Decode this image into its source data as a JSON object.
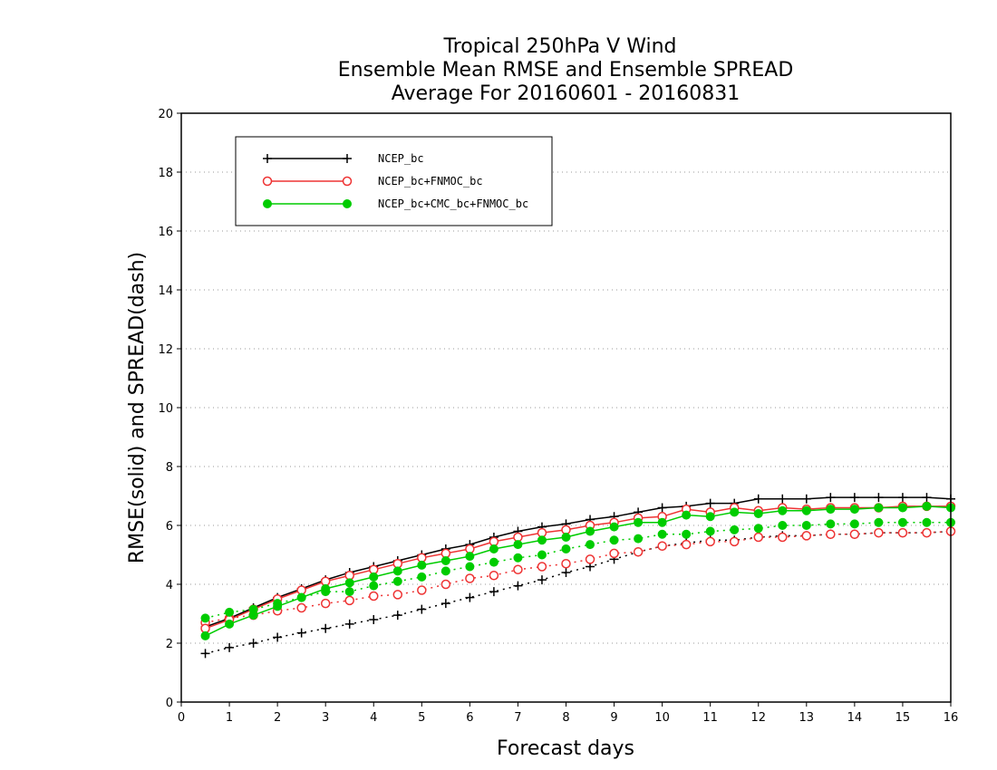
{
  "chart_data": {
    "type": "line",
    "title_lines": [
      "Tropical 250hPa V Wind",
      "Ensemble Mean RMSE and Ensemble SPREAD",
      "Average For 20160601 - 20160831"
    ],
    "xlabel": "Forecast days",
    "ylabel": "RMSE(solid) and SPREAD(dash)",
    "xlim": [
      0,
      16
    ],
    "ylim": [
      0,
      20
    ],
    "x_ticks": [
      "0",
      "1",
      "2",
      "3",
      "4",
      "5",
      "6",
      "7",
      "8",
      "9",
      "10",
      "11",
      "12",
      "13",
      "14",
      "15",
      "16"
    ],
    "y_ticks": [
      "0",
      "2",
      "4",
      "6",
      "8",
      "10",
      "12",
      "14",
      "16",
      "18",
      "20"
    ],
    "grid": "horizontal-dotted",
    "legend_position": "top-left",
    "x": [
      0.5,
      1,
      1.5,
      2,
      2.5,
      3,
      3.5,
      4,
      4.5,
      5,
      5.5,
      6,
      6.5,
      7,
      7.5,
      8,
      8.5,
      9,
      9.5,
      10,
      10.5,
      11,
      11.5,
      12,
      12.5,
      13,
      13.5,
      14,
      14.5,
      15,
      15.5,
      16
    ],
    "series": [
      {
        "name": "NCEP_bc",
        "color": "#000000",
        "marker": "plus",
        "rmse": [
          2.55,
          2.85,
          3.2,
          3.55,
          3.85,
          4.15,
          4.4,
          4.6,
          4.8,
          5.0,
          5.2,
          5.35,
          5.6,
          5.8,
          5.95,
          6.05,
          6.2,
          6.3,
          6.45,
          6.6,
          6.65,
          6.75,
          6.75,
          6.9,
          6.9,
          6.9,
          6.95,
          6.95,
          6.95,
          6.95,
          6.95,
          6.9
        ],
        "spread": [
          1.65,
          1.85,
          2.0,
          2.2,
          2.35,
          2.5,
          2.65,
          2.8,
          2.95,
          3.15,
          3.35,
          3.55,
          3.75,
          3.95,
          4.15,
          4.4,
          4.6,
          4.85,
          5.1,
          5.3,
          5.4,
          5.5,
          5.5,
          5.6,
          5.65,
          5.65,
          5.7,
          5.7,
          5.75,
          5.75,
          5.75,
          5.8
        ]
      },
      {
        "name": "NCEP_bc+FNMOC_bc",
        "color": "#ee3333",
        "marker": "open-circle",
        "rmse": [
          2.5,
          2.8,
          3.15,
          3.5,
          3.8,
          4.1,
          4.3,
          4.5,
          4.7,
          4.9,
          5.05,
          5.2,
          5.45,
          5.6,
          5.75,
          5.85,
          6.0,
          6.1,
          6.25,
          6.3,
          6.55,
          6.45,
          6.6,
          6.5,
          6.6,
          6.55,
          6.6,
          6.6,
          6.6,
          6.65,
          6.65,
          6.65
        ],
        "spread": [
          2.7,
          2.85,
          2.95,
          3.1,
          3.2,
          3.35,
          3.45,
          3.6,
          3.65,
          3.8,
          4.0,
          4.2,
          4.3,
          4.5,
          4.6,
          4.7,
          4.85,
          5.05,
          5.1,
          5.3,
          5.35,
          5.45,
          5.45,
          5.6,
          5.6,
          5.65,
          5.7,
          5.7,
          5.75,
          5.75,
          5.75,
          5.8
        ]
      },
      {
        "name": "NCEP_bc+CMC_bc+FNMOC_bc",
        "color": "#00cc00",
        "marker": "filled-circle",
        "rmse": [
          2.25,
          2.65,
          2.95,
          3.25,
          3.55,
          3.85,
          4.05,
          4.25,
          4.45,
          4.65,
          4.8,
          4.95,
          5.2,
          5.35,
          5.5,
          5.6,
          5.8,
          5.95,
          6.1,
          6.1,
          6.35,
          6.3,
          6.45,
          6.4,
          6.5,
          6.5,
          6.55,
          6.55,
          6.6,
          6.6,
          6.65,
          6.6
        ],
        "spread": [
          2.85,
          3.05,
          3.15,
          3.35,
          3.55,
          3.75,
          3.75,
          3.95,
          4.1,
          4.25,
          4.45,
          4.6,
          4.75,
          4.9,
          5.0,
          5.2,
          5.35,
          5.5,
          5.55,
          5.7,
          5.7,
          5.8,
          5.85,
          5.9,
          6.0,
          6.0,
          6.05,
          6.05,
          6.1,
          6.1,
          6.1,
          6.1
        ]
      }
    ]
  }
}
